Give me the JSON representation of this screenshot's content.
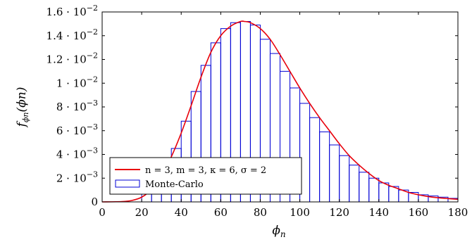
{
  "chart_data": {
    "type": "bar",
    "title": "",
    "xlabel": "ϕ",
    "xlabel_sub": "n",
    "ylabel": "f",
    "ylabel_sub": "ϕn",
    "ylabel_arg": "(ϕn)",
    "xlim": [
      0,
      180
    ],
    "ylim": [
      0,
      0.016
    ],
    "grid": false,
    "legend_position": "bottom-left",
    "x_ticks": [
      0,
      20,
      40,
      60,
      80,
      100,
      120,
      140,
      160,
      180
    ],
    "x_tick_labels": [
      "0",
      "20",
      "40",
      "60",
      "80",
      "100",
      "120",
      "140",
      "160",
      "180"
    ],
    "y_ticks": [
      0,
      0.002,
      0.004,
      0.006,
      0.008,
      0.01,
      0.012,
      0.014,
      0.016
    ],
    "y_tick_labels": [
      {
        "mantissa": "0",
        "exp": ""
      },
      {
        "mantissa": "2 · 10",
        "exp": "−3"
      },
      {
        "mantissa": "4 · 10",
        "exp": "−3"
      },
      {
        "mantissa": "6 · 10",
        "exp": "−3"
      },
      {
        "mantissa": "8 · 10",
        "exp": "−3"
      },
      {
        "mantissa": "1 · 10",
        "exp": "−2"
      },
      {
        "mantissa": "1.2 · 10",
        "exp": "−2"
      },
      {
        "mantissa": "1.4 · 10",
        "exp": "−2"
      },
      {
        "mantissa": "1.6 · 10",
        "exp": "−2"
      }
    ],
    "series": [
      {
        "name": "n = 3, m = 3, κ = 6, σ = 2",
        "type": "line",
        "color": "#e8000b",
        "x": [
          0,
          10,
          15,
          20,
          25,
          30,
          35,
          40,
          45,
          50,
          55,
          60,
          65,
          70,
          72,
          75,
          80,
          85,
          90,
          95,
          100,
          105,
          110,
          115,
          120,
          125,
          130,
          135,
          140,
          145,
          150,
          155,
          160,
          165,
          170,
          175,
          180
        ],
        "y": [
          0,
          3e-05,
          0.00012,
          0.0004,
          0.00105,
          0.0022,
          0.0038,
          0.0058,
          0.0081,
          0.0105,
          0.0126,
          0.014,
          0.0148,
          0.0152,
          0.0152,
          0.0151,
          0.0146,
          0.0137,
          0.0124,
          0.011,
          0.0096,
          0.0083,
          0.0071,
          0.006,
          0.0049,
          0.0039,
          0.0031,
          0.0024,
          0.0018,
          0.0014,
          0.0011,
          0.0008,
          0.0006,
          0.00045,
          0.00035,
          0.00028,
          0.00022
        ]
      },
      {
        "name": "Monte-Carlo",
        "type": "bar",
        "color": "#0000d4",
        "bin_width": 5,
        "x": [
          22.5,
          27.5,
          32.5,
          37.5,
          42.5,
          47.5,
          52.5,
          57.5,
          62.5,
          67.5,
          72.5,
          77.5,
          82.5,
          87.5,
          92.5,
          97.5,
          102.5,
          107.5,
          112.5,
          117.5,
          122.5,
          127.5,
          132.5,
          137.5,
          142.5,
          147.5,
          152.5,
          157.5,
          162.5,
          167.5,
          172.5,
          177.5
        ],
        "y": [
          0.0008,
          0.0016,
          0.0027,
          0.0045,
          0.0068,
          0.0093,
          0.0115,
          0.0134,
          0.0146,
          0.0151,
          0.0152,
          0.0149,
          0.0137,
          0.0125,
          0.011,
          0.0096,
          0.0083,
          0.0071,
          0.0059,
          0.0048,
          0.0039,
          0.0031,
          0.0025,
          0.002,
          0.0016,
          0.0013,
          0.001,
          0.0008,
          0.0006,
          0.0005,
          0.0004,
          0.0003
        ]
      }
    ],
    "legend": [
      {
        "label": "n = 3, m = 3, κ = 6, σ = 2",
        "marker": "line"
      },
      {
        "label": "Monte-Carlo",
        "marker": "box"
      }
    ]
  }
}
